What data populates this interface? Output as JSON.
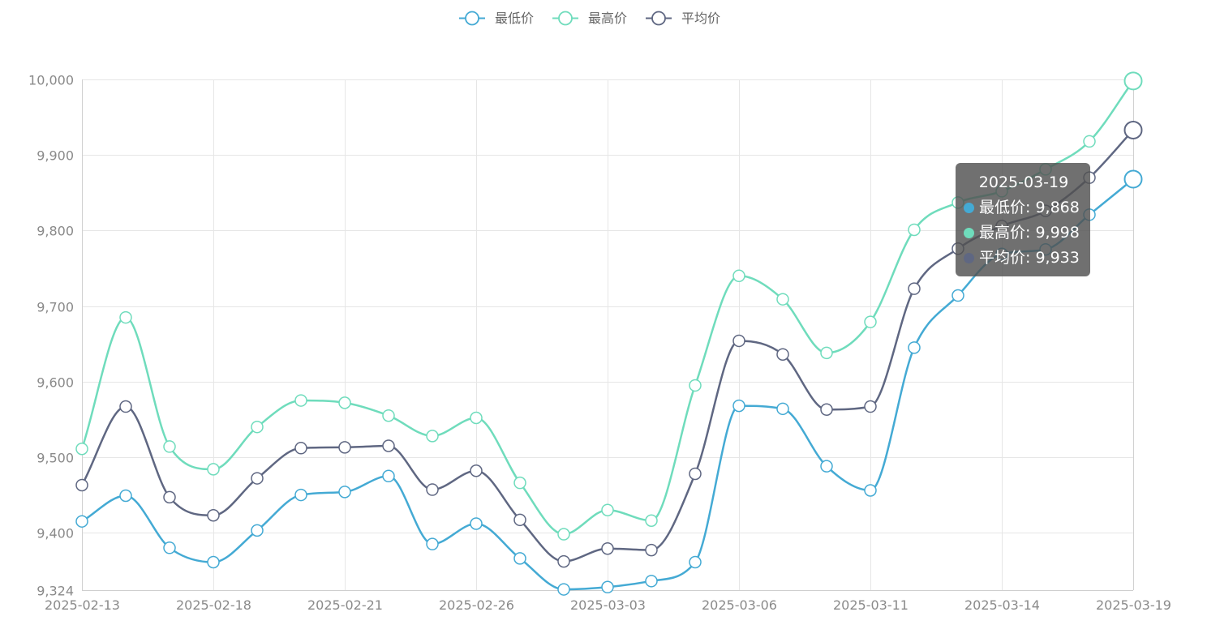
{
  "chart_data": {
    "type": "line",
    "smooth": true,
    "categories": [
      "2025-02-13",
      "2025-02-14",
      "2025-02-17",
      "2025-02-18",
      "2025-02-19",
      "2025-02-20",
      "2025-02-21",
      "2025-02-24",
      "2025-02-25",
      "2025-02-26",
      "2025-02-27",
      "2025-02-28",
      "2025-03-03",
      "2025-03-04",
      "2025-03-05",
      "2025-03-06",
      "2025-03-07",
      "2025-03-10",
      "2025-03-11",
      "2025-03-12",
      "2025-03-13",
      "2025-03-14",
      "2025-03-17",
      "2025-03-18",
      "2025-03-19"
    ],
    "x_tick_labels": [
      "2025-02-13",
      "2025-02-18",
      "2025-02-21",
      "2025-02-26",
      "2025-03-03",
      "2025-03-06",
      "2025-03-11",
      "2025-03-14",
      "2025-03-19"
    ],
    "ylim": [
      9324,
      10000
    ],
    "y_ticks": [
      9324,
      9400,
      9500,
      9600,
      9700,
      9800,
      9900,
      10000
    ],
    "y_tick_labels": [
      "9,324",
      "9,400",
      "9,500",
      "9,600",
      "9,700",
      "9,800",
      "9,900",
      "10,000"
    ],
    "grid": true,
    "legend_position": "top-center",
    "series": [
      {
        "name": "最低价",
        "color": "#44aad4",
        "values": [
          9415,
          9449,
          9380,
          9361,
          9403,
          9450,
          9454,
          9475,
          9385,
          9412,
          9366,
          9325,
          9328,
          9336,
          9361,
          9568,
          9564,
          9488,
          9456,
          9645,
          9714,
          9769,
          9775,
          9821,
          9868
        ]
      },
      {
        "name": "最高价",
        "color": "#6fdcbc",
        "values": [
          9511,
          9685,
          9514,
          9484,
          9540,
          9575,
          9572,
          9555,
          9528,
          9552,
          9466,
          9398,
          9430,
          9416,
          9595,
          9740,
          9709,
          9638,
          9679,
          9801,
          9837,
          9852,
          9881,
          9918,
          9998
        ]
      },
      {
        "name": "平均价",
        "color": "#5f6782",
        "values": [
          9463,
          9567,
          9447,
          9423,
          9472,
          9512,
          9513,
          9515,
          9457,
          9482,
          9417,
          9362,
          9379,
          9377,
          9478,
          9654,
          9636,
          9563,
          9567,
          9723,
          9776,
          9806,
          9826,
          9870,
          9933
        ]
      }
    ]
  },
  "tooltip": {
    "date": "2025-03-19",
    "rows": [
      {
        "text": "最低价: 9,868",
        "color": "#44aad4"
      },
      {
        "text": "最高价: 9,998",
        "color": "#6fdcbc"
      },
      {
        "text": "平均价: 9,933",
        "color": "#5f6782"
      }
    ]
  }
}
